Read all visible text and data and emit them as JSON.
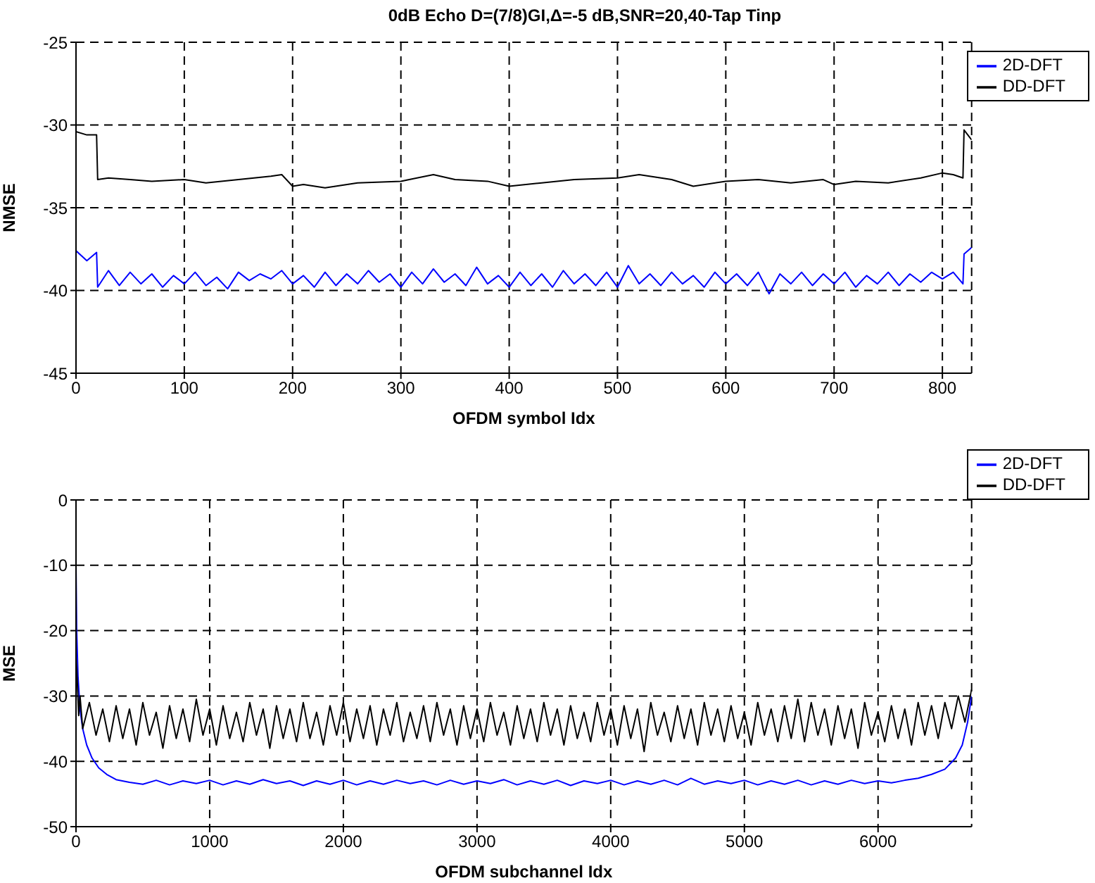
{
  "chart_data": [
    {
      "type": "line",
      "title": "0dB Echo D=(7/8)GI,Δ=-5 dB,SNR=20,40-Tap Tinp",
      "xlabel": "OFDM symbol Idx",
      "ylabel": "NMSE",
      "xlim": [
        0,
        827
      ],
      "xticks": [
        0,
        100,
        200,
        300,
        400,
        500,
        600,
        700,
        800
      ],
      "ylim": [
        -45,
        -25
      ],
      "yticks": [
        -45,
        -40,
        -35,
        -30,
        -25
      ],
      "grid": true,
      "legend": "top right",
      "series": [
        {
          "name": "2D-DFT",
          "color": "#0000ff",
          "x": [
            0,
            10,
            19,
            20,
            30,
            40,
            50,
            60,
            70,
            80,
            90,
            100,
            110,
            120,
            130,
            140,
            150,
            160,
            170,
            180,
            190,
            200,
            210,
            220,
            230,
            240,
            250,
            260,
            270,
            280,
            290,
            300,
            310,
            320,
            330,
            340,
            350,
            360,
            370,
            380,
            390,
            400,
            410,
            420,
            430,
            440,
            450,
            460,
            470,
            480,
            490,
            500,
            510,
            520,
            530,
            540,
            550,
            560,
            570,
            580,
            590,
            600,
            610,
            620,
            630,
            640,
            650,
            660,
            670,
            680,
            690,
            700,
            710,
            720,
            730,
            740,
            750,
            760,
            770,
            780,
            790,
            800,
            810,
            819,
            820,
            827
          ],
          "values": [
            -37.6,
            -38.2,
            -37.7,
            -39.8,
            -38.8,
            -39.7,
            -38.9,
            -39.6,
            -39.0,
            -39.8,
            -39.1,
            -39.6,
            -38.9,
            -39.7,
            -39.2,
            -39.9,
            -38.9,
            -39.4,
            -39.0,
            -39.3,
            -38.8,
            -39.6,
            -39.1,
            -39.8,
            -38.9,
            -39.7,
            -39.0,
            -39.6,
            -38.8,
            -39.5,
            -39.0,
            -39.8,
            -38.9,
            -39.6,
            -38.7,
            -39.5,
            -39.0,
            -39.7,
            -38.6,
            -39.6,
            -39.1,
            -39.8,
            -38.9,
            -39.7,
            -39.0,
            -39.8,
            -38.8,
            -39.6,
            -39.0,
            -39.7,
            -38.9,
            -39.8,
            -38.5,
            -39.6,
            -39.0,
            -39.7,
            -38.9,
            -39.6,
            -39.1,
            -39.8,
            -38.9,
            -39.6,
            -39.0,
            -39.7,
            -38.9,
            -40.2,
            -39.0,
            -39.6,
            -38.9,
            -39.7,
            -39.0,
            -39.6,
            -38.9,
            -39.8,
            -39.1,
            -39.6,
            -38.9,
            -39.7,
            -39.0,
            -39.5,
            -38.9,
            -39.3,
            -38.9,
            -39.6,
            -37.8,
            -37.4
          ]
        },
        {
          "name": "DD-DFT",
          "color": "#000000",
          "x": [
            0,
            10,
            19,
            20,
            30,
            50,
            70,
            100,
            120,
            150,
            180,
            190,
            200,
            210,
            230,
            260,
            300,
            330,
            350,
            380,
            400,
            430,
            460,
            500,
            520,
            550,
            570,
            600,
            630,
            660,
            690,
            700,
            720,
            750,
            780,
            800,
            810,
            819,
            820,
            827
          ],
          "values": [
            -30.4,
            -30.6,
            -30.6,
            -33.3,
            -33.2,
            -33.3,
            -33.4,
            -33.3,
            -33.5,
            -33.3,
            -33.1,
            -33.0,
            -33.7,
            -33.6,
            -33.8,
            -33.5,
            -33.4,
            -33.0,
            -33.3,
            -33.4,
            -33.7,
            -33.5,
            -33.3,
            -33.2,
            -33.0,
            -33.3,
            -33.7,
            -33.4,
            -33.3,
            -33.5,
            -33.3,
            -33.6,
            -33.4,
            -33.5,
            -33.2,
            -32.9,
            -33.0,
            -33.2,
            -30.3,
            -30.9
          ]
        }
      ]
    },
    {
      "type": "line",
      "xlabel": "OFDM subchannel Idx",
      "ylabel": "MSE",
      "xlim": [
        0,
        6700
      ],
      "xticks": [
        0,
        1000,
        2000,
        3000,
        4000,
        5000,
        6000
      ],
      "ylim": [
        -50,
        0
      ],
      "yticks": [
        -50,
        -40,
        -30,
        -20,
        -10,
        0
      ],
      "grid": true,
      "legend": "top right",
      "series": [
        {
          "name": "2D-DFT",
          "color": "#0000ff",
          "x": [
            0,
            5,
            15,
            30,
            50,
            80,
            120,
            170,
            230,
            300,
            400,
            500,
            600,
            700,
            800,
            900,
            1000,
            1100,
            1200,
            1300,
            1400,
            1500,
            1600,
            1700,
            1800,
            1900,
            2000,
            2100,
            2200,
            2300,
            2400,
            2500,
            2600,
            2700,
            2800,
            2900,
            3000,
            3100,
            3200,
            3300,
            3400,
            3500,
            3600,
            3700,
            3800,
            3900,
            4000,
            4100,
            4200,
            4300,
            4400,
            4500,
            4600,
            4700,
            4800,
            4900,
            5000,
            5100,
            5200,
            5300,
            5400,
            5500,
            5600,
            5700,
            5800,
            5900,
            6000,
            6100,
            6200,
            6300,
            6400,
            6500,
            6580,
            6630,
            6670,
            6700
          ],
          "values": [
            -10,
            -20,
            -27,
            -32,
            -35,
            -37.5,
            -39.5,
            -41,
            -42,
            -42.8,
            -43.2,
            -43.5,
            -42.9,
            -43.6,
            -43.0,
            -43.4,
            -42.9,
            -43.6,
            -43.0,
            -43.5,
            -42.8,
            -43.4,
            -43.0,
            -43.7,
            -43.0,
            -43.5,
            -42.9,
            -43.6,
            -43.0,
            -43.5,
            -42.9,
            -43.4,
            -43.0,
            -43.6,
            -42.9,
            -43.5,
            -43.0,
            -43.4,
            -42.8,
            -43.6,
            -43.0,
            -43.5,
            -42.9,
            -43.7,
            -43.0,
            -43.4,
            -42.9,
            -43.6,
            -43.0,
            -43.5,
            -42.9,
            -43.6,
            -42.6,
            -43.5,
            -43.0,
            -43.4,
            -42.9,
            -43.6,
            -43.0,
            -43.5,
            -42.9,
            -43.6,
            -43.0,
            -43.5,
            -42.9,
            -43.4,
            -43.0,
            -43.3,
            -42.9,
            -42.6,
            -42,
            -41.2,
            -39.5,
            -37.5,
            -34,
            -30
          ]
        },
        {
          "name": "DD-DFT",
          "color": "#000000",
          "x": [
            0,
            10,
            20,
            30,
            50,
            100,
            150,
            200,
            250,
            300,
            350,
            400,
            450,
            500,
            550,
            600,
            650,
            700,
            750,
            800,
            850,
            900,
            950,
            1000,
            1050,
            1100,
            1150,
            1200,
            1250,
            1300,
            1350,
            1400,
            1450,
            1500,
            1550,
            1600,
            1650,
            1700,
            1750,
            1800,
            1850,
            1900,
            1950,
            2000,
            2050,
            2100,
            2150,
            2200,
            2250,
            2300,
            2350,
            2400,
            2450,
            2500,
            2550,
            2600,
            2650,
            2700,
            2750,
            2800,
            2850,
            2900,
            2950,
            3000,
            3050,
            3100,
            3150,
            3200,
            3250,
            3300,
            3350,
            3400,
            3450,
            3500,
            3550,
            3600,
            3650,
            3700,
            3750,
            3800,
            3850,
            3900,
            3950,
            4000,
            4050,
            4100,
            4150,
            4200,
            4250,
            4300,
            4350,
            4400,
            4450,
            4500,
            4550,
            4600,
            4650,
            4700,
            4750,
            4800,
            4850,
            4900,
            4950,
            5000,
            5050,
            5100,
            5150,
            5200,
            5250,
            5300,
            5350,
            5400,
            5450,
            5500,
            5550,
            5600,
            5650,
            5700,
            5750,
            5800,
            5850,
            5900,
            5950,
            6000,
            6050,
            6100,
            6150,
            6200,
            6250,
            6300,
            6350,
            6400,
            6450,
            6500,
            6550,
            6600,
            6650,
            6700
          ],
          "values": [
            -24,
            -28,
            -33,
            -30,
            -35,
            -31,
            -36,
            -32,
            -37,
            -31.5,
            -36.5,
            -32,
            -37.5,
            -31,
            -36,
            -32.5,
            -38,
            -31.5,
            -36.5,
            -32,
            -37,
            -30.5,
            -36,
            -32,
            -37.5,
            -31.5,
            -36.5,
            -32.5,
            -37,
            -31,
            -36,
            -32,
            -38,
            -31.5,
            -36.5,
            -32,
            -37,
            -31,
            -36.5,
            -32.5,
            -37.5,
            -31.5,
            -36,
            -31,
            -37,
            -32,
            -36.5,
            -31.5,
            -37.5,
            -32,
            -36,
            -31,
            -37,
            -32.5,
            -36.5,
            -31.5,
            -37,
            -31,
            -36,
            -32,
            -37.5,
            -31.5,
            -36.5,
            -32,
            -37,
            -31,
            -36,
            -32.5,
            -37.5,
            -31.5,
            -36.5,
            -32,
            -37,
            -31,
            -36,
            -32,
            -37.5,
            -31.5,
            -36.5,
            -32.5,
            -37,
            -31,
            -36,
            -32,
            -37.5,
            -31.5,
            -36.5,
            -32,
            -38.5,
            -31,
            -36,
            -32.5,
            -37,
            -31.5,
            -36.5,
            -32,
            -37.5,
            -31,
            -36,
            -32,
            -37,
            -31.5,
            -36.5,
            -32.5,
            -37.5,
            -31,
            -36,
            -32,
            -37,
            -31.5,
            -36.5,
            -30.5,
            -37,
            -31,
            -36,
            -32,
            -37.5,
            -31.5,
            -36.5,
            -32,
            -38,
            -31,
            -36,
            -32.5,
            -37,
            -31.5,
            -36.5,
            -32,
            -37.5,
            -31,
            -36,
            -31.5,
            -36.5,
            -31,
            -35,
            -30,
            -34,
            -29
          ]
        }
      ]
    }
  ]
}
